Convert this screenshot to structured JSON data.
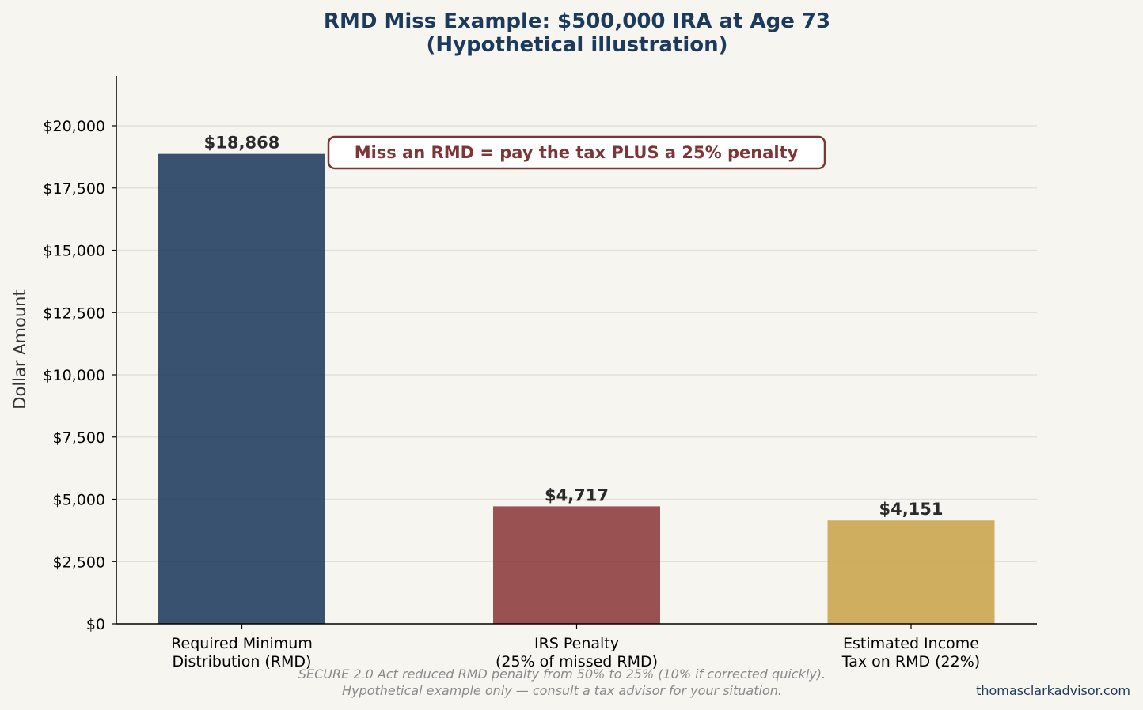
{
  "chart_data": {
    "type": "bar",
    "title_lines": [
      "RMD Miss Example: $500,000 IRA at Age 73",
      "(Hypothetical illustration)"
    ],
    "ylabel": "Dollar Amount",
    "xlabel": "",
    "categories": [
      [
        "Required Minimum",
        "Distribution (RMD)"
      ],
      [
        "IRS Penalty",
        "(25% of missed RMD)"
      ],
      [
        "Estimated Income",
        "Tax on RMD (22%)"
      ]
    ],
    "values": [
      18868,
      4717,
      4151
    ],
    "data_labels": [
      "$18,868",
      "$4,717",
      "$4,151"
    ],
    "colors": [
      "#1b3a5c",
      "#8b3a3a",
      "#c9a449"
    ],
    "ylim": [
      0,
      22000
    ],
    "yticks": [
      0,
      2500,
      5000,
      7500,
      10000,
      12500,
      15000,
      17500,
      20000
    ],
    "ytick_labels": [
      "$0",
      "$2,500",
      "$5,000",
      "$7,500",
      "$10,000",
      "$12,500",
      "$15,000",
      "$17,500",
      "$20,000"
    ],
    "grid": "y",
    "annotation": "Miss an RMD = pay the tax PLUS a 25% penalty",
    "annotation_color": "#7d3535"
  },
  "footnote": {
    "line1": "SECURE 2.0 Act reduced RMD penalty from 50% to 25% (10% if corrected quickly).",
    "line2": "Hypothetical example only — consult a tax advisor for your situation."
  },
  "brand": "thomasclarkadvisor.com",
  "colors": {
    "background": "#f7f5f0",
    "title": "#1b3a5c",
    "grid": "#e2e0da"
  }
}
